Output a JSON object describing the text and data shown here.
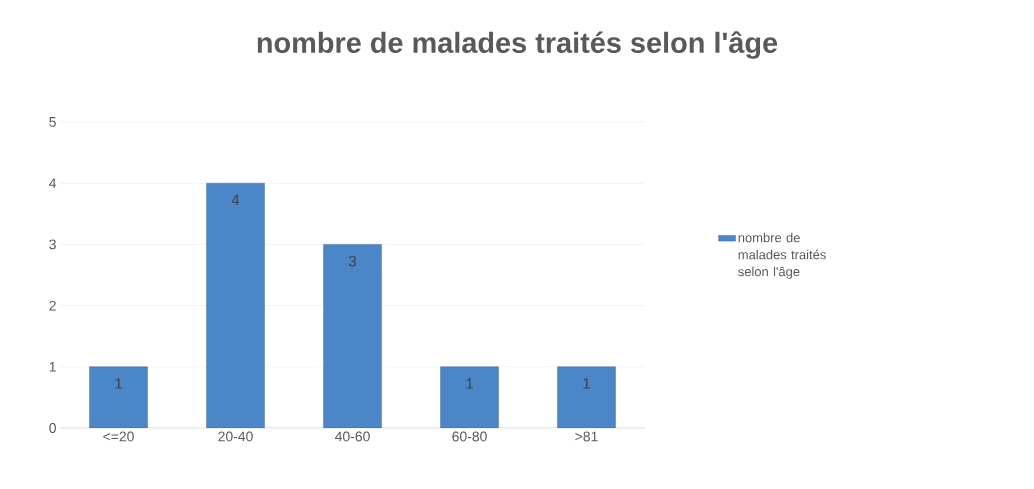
{
  "chart_data": {
    "type": "bar",
    "title": "nombre de malades traités selon l'âge",
    "categories": [
      "<=20",
      "20-40",
      "40-60",
      "60-80",
      ">81"
    ],
    "series": [
      {
        "name": "nombre de malades traités selon l'âge",
        "color": "#4a86c8",
        "values": [
          1,
          4,
          3,
          1,
          1
        ]
      }
    ],
    "ylim": [
      0,
      5
    ],
    "yticks": [
      0,
      1,
      2,
      3,
      4,
      5
    ],
    "grid": "y",
    "legend": "right",
    "data_labels": true
  }
}
